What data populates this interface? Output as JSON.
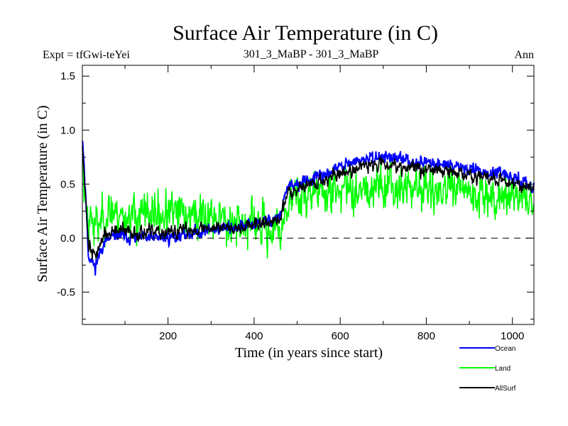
{
  "chart_data": {
    "type": "line",
    "title": "Surface Air Temperature (in C)",
    "subtitle_left": "Expt = tfGwi-teYei",
    "subtitle_center": "301_3_MaBP - 301_3_MaBP",
    "subtitle_right": "Ann",
    "xlabel": "Time (in years since start)",
    "ylabel": "Surface Air Temperature (in C)",
    "xlim": [
      1,
      1050
    ],
    "ylim": [
      -0.8,
      1.6
    ],
    "xticks": [
      200,
      400,
      600,
      800,
      1000
    ],
    "xtick_labels": [
      "200",
      "400",
      "600",
      "800",
      "1000"
    ],
    "yticks": [
      -0.5,
      0.0,
      0.5,
      1.0,
      1.5
    ],
    "ytick_labels": [
      "-0.5",
      "0.0",
      "0.5",
      "1.0",
      "1.5"
    ],
    "zero_line": 0.0,
    "legend_position": "bottom-right",
    "series": [
      {
        "name": "Ocean",
        "color": "#0000ff",
        "control_x": [
          1,
          5,
          15,
          30,
          50,
          80,
          120,
          200,
          300,
          400,
          460,
          475,
          500,
          550,
          600,
          650,
          700,
          750,
          800,
          850,
          900,
          950,
          1000,
          1050
        ],
        "control_y": [
          0.95,
          0.7,
          -0.15,
          -0.27,
          -0.05,
          0.03,
          0.0,
          0.0,
          0.08,
          0.12,
          0.2,
          0.45,
          0.5,
          0.56,
          0.66,
          0.72,
          0.76,
          0.72,
          0.7,
          0.68,
          0.64,
          0.6,
          0.56,
          0.48
        ],
        "noise": 0.055,
        "seed": 11
      },
      {
        "name": "Land",
        "color": "#00ff00",
        "control_x": [
          1,
          5,
          15,
          30,
          60,
          100,
          200,
          300,
          400,
          460,
          475,
          500,
          600,
          700,
          800,
          900,
          1000,
          1050
        ],
        "control_y": [
          0.85,
          0.5,
          0.2,
          0.1,
          0.25,
          0.2,
          0.22,
          0.2,
          0.12,
          0.05,
          0.3,
          0.4,
          0.45,
          0.5,
          0.45,
          0.42,
          0.4,
          0.35
        ],
        "noise": 0.19,
        "seed": 23
      },
      {
        "name": "AllSurf",
        "color": "#000000",
        "control_x": [
          1,
          5,
          15,
          30,
          50,
          80,
          120,
          200,
          300,
          400,
          460,
          475,
          500,
          550,
          600,
          650,
          700,
          750,
          800,
          850,
          900,
          950,
          1000,
          1050
        ],
        "control_y": [
          0.9,
          0.6,
          -0.05,
          -0.18,
          0.02,
          0.07,
          0.05,
          0.05,
          0.1,
          0.12,
          0.16,
          0.4,
          0.47,
          0.52,
          0.6,
          0.66,
          0.7,
          0.66,
          0.64,
          0.62,
          0.58,
          0.55,
          0.52,
          0.45
        ],
        "noise": 0.06,
        "seed": 37
      }
    ]
  }
}
